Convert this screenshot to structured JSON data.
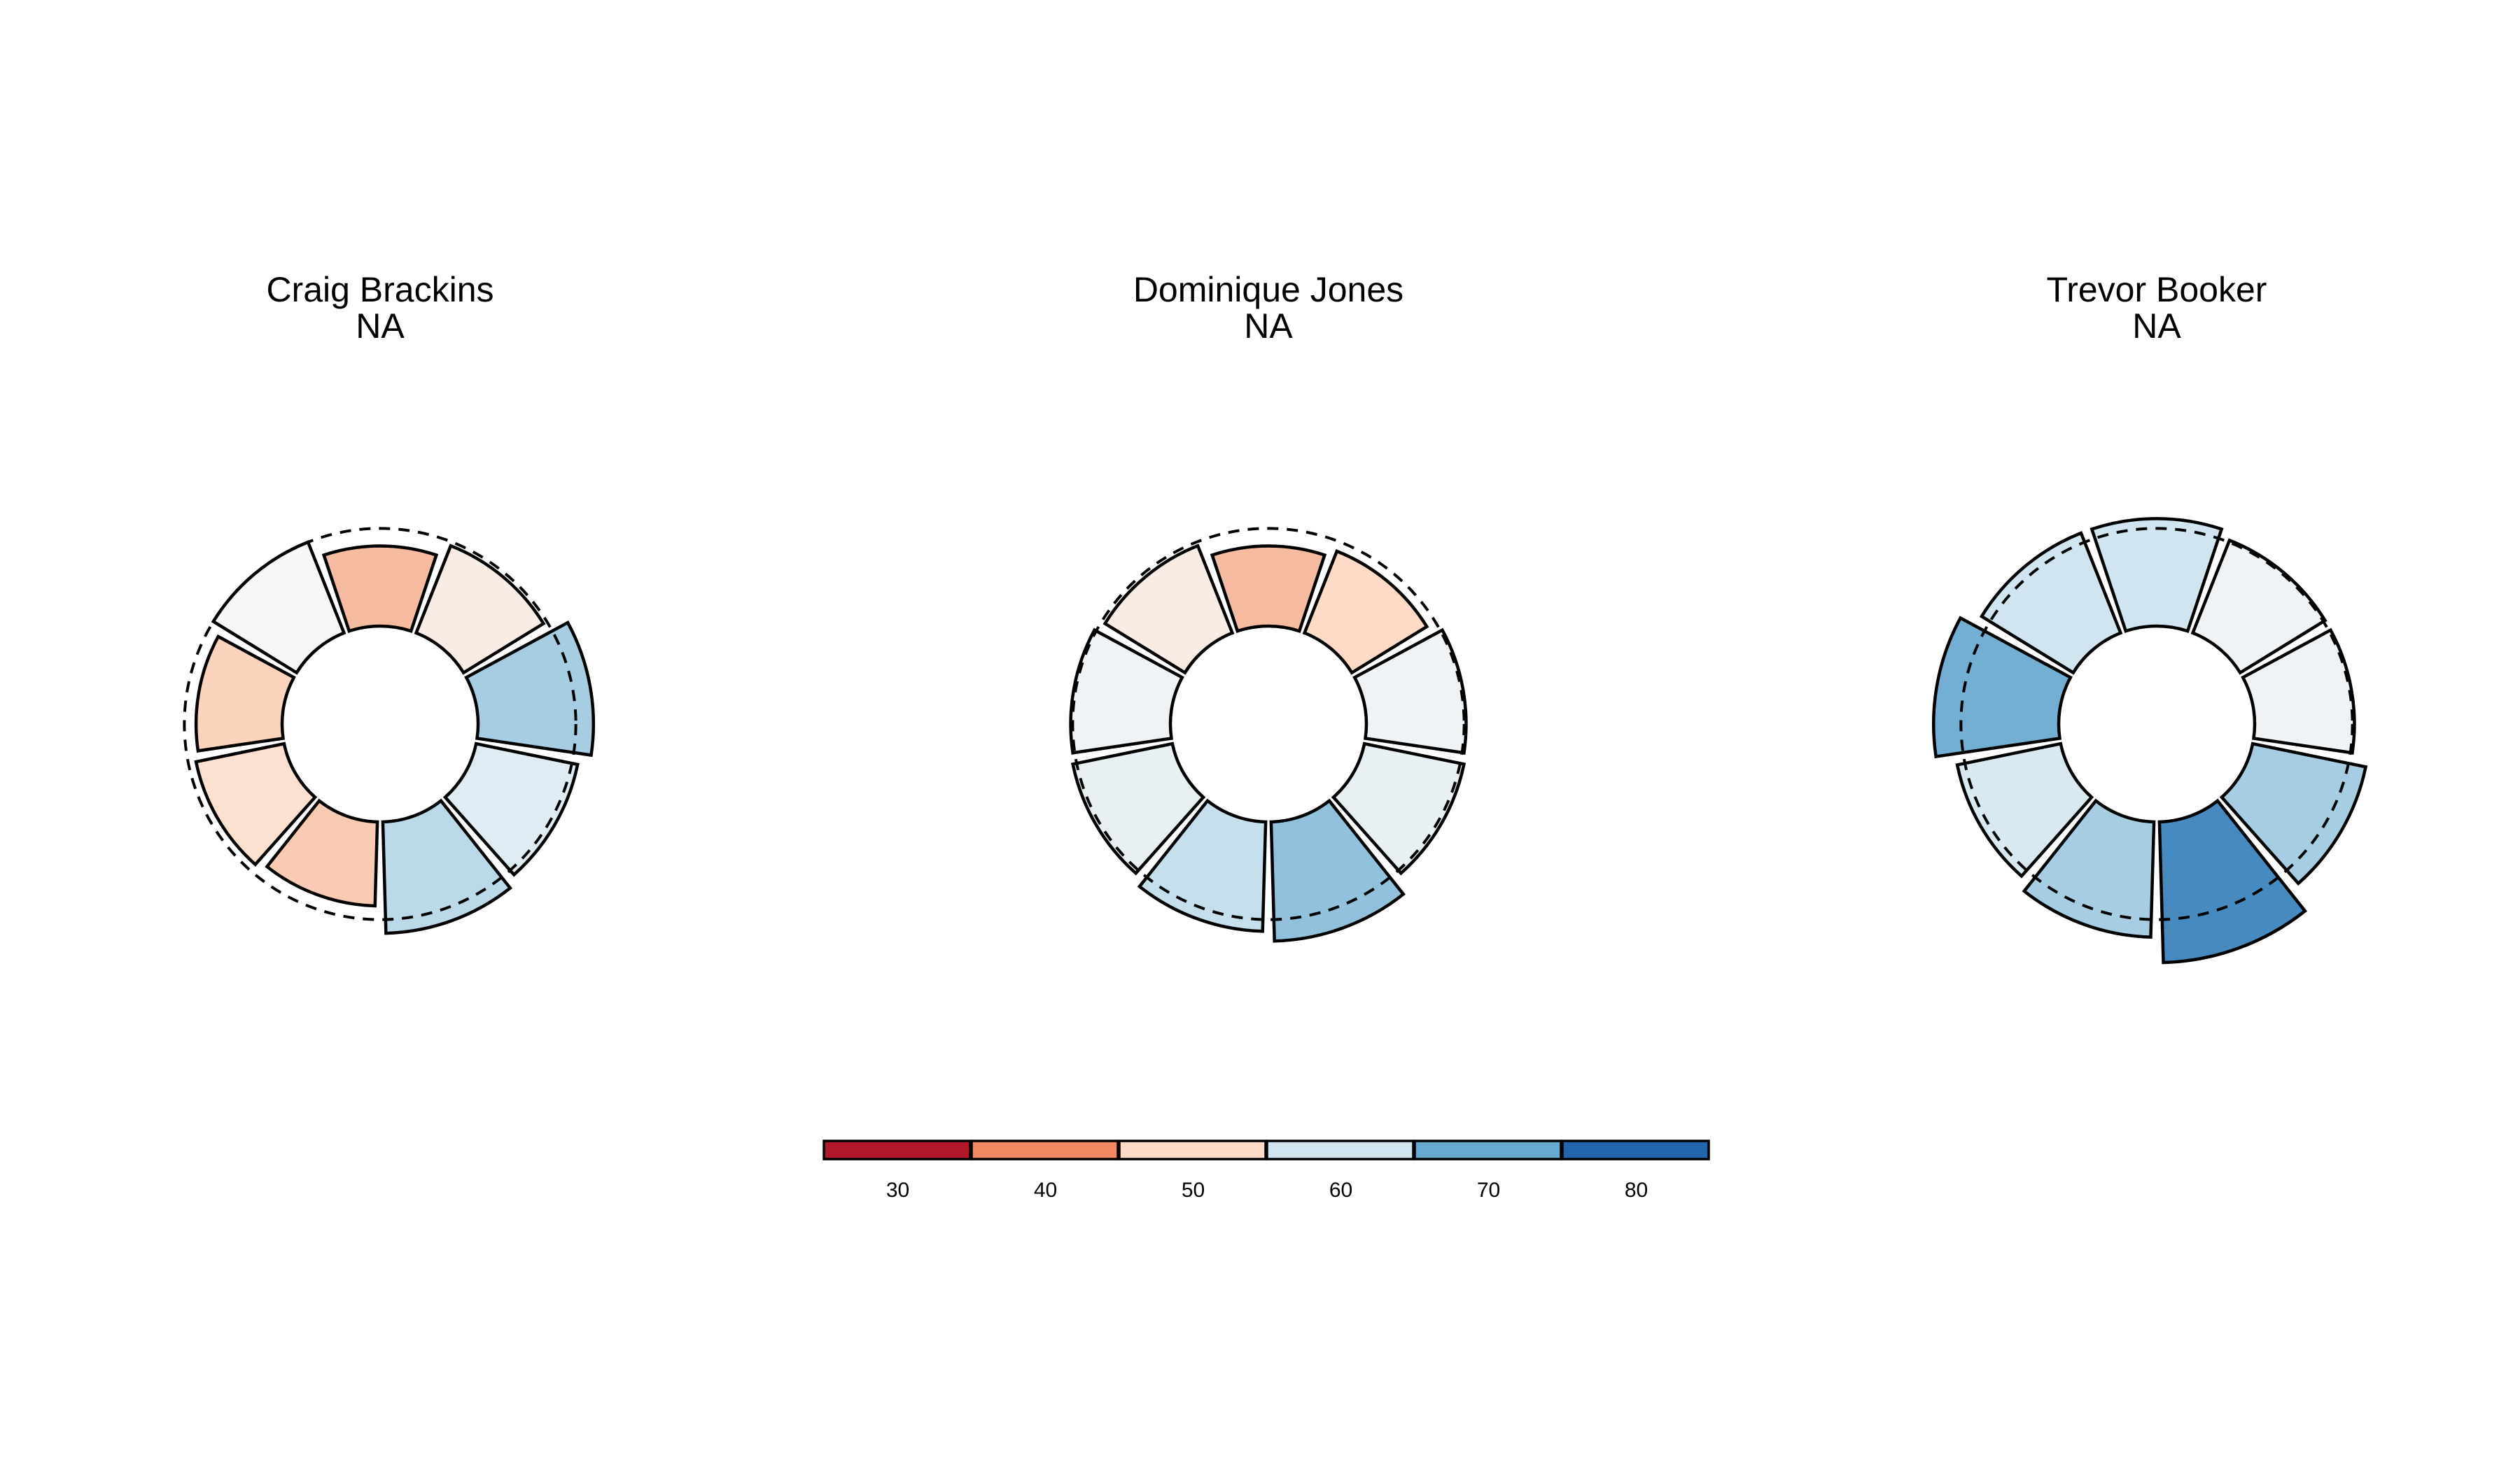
{
  "chart_data": [
    {
      "type": "polar-bar",
      "name": "Craig Brackins",
      "subtitle": "NA",
      "values": [
        41,
        48,
        59,
        53,
        57,
        43,
        46,
        44,
        50
      ],
      "average": 50
    },
    {
      "type": "polar-bar",
      "name": "Dominique Jones",
      "subtitle": "NA",
      "values": [
        41,
        45,
        51,
        52,
        61,
        56,
        52,
        51,
        48
      ],
      "average": 50
    },
    {
      "type": "polar-bar",
      "name": "Trevor Booker",
      "subtitle": "NA",
      "values": [
        55,
        51,
        51,
        59,
        72,
        59,
        54,
        64,
        55
      ],
      "average": 50
    }
  ],
  "legend": {
    "ticks": [
      "30",
      "40",
      "50",
      "60",
      "70",
      "80"
    ],
    "colors": [
      "#b2182b",
      "#ef8a62",
      "#fddbc7",
      "#d1e5f0",
      "#67a9cf",
      "#2166ac"
    ]
  },
  "colorscale": {
    "stops": [
      {
        "v": 25,
        "c": "#b2182b"
      },
      {
        "v": 35,
        "c": "#ef8a62"
      },
      {
        "v": 45,
        "c": "#fddbc7"
      },
      {
        "v": 50,
        "c": "#f7f7f7"
      },
      {
        "v": 55,
        "c": "#d1e5f0"
      },
      {
        "v": 65,
        "c": "#67a9cf"
      },
      {
        "v": 80,
        "c": "#2166ac"
      }
    ]
  }
}
